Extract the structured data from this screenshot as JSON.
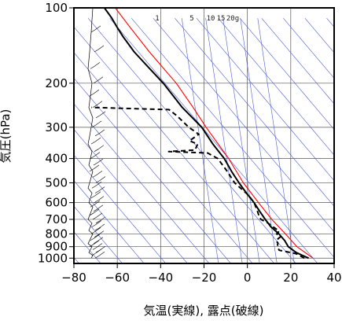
{
  "chart_data": {
    "type": "line",
    "subtype": "skew-t log-p sounding",
    "xlabel": "気温(実線), 露点(破線)",
    "ylabel": "気圧(hPa)",
    "xlim": [
      -80,
      40
    ],
    "ylim": [
      1050,
      100
    ],
    "y_scale": "log",
    "x_ticks": [
      -80,
      -60,
      -40,
      -20,
      0,
      20,
      40
    ],
    "y_ticks": [
      100,
      200,
      300,
      400,
      500,
      600,
      700,
      800,
      900,
      1000
    ],
    "grid": true,
    "mixing_ratio_labels": [
      "1",
      "5",
      "10",
      "15",
      "20g"
    ],
    "mixing_ratio_values": [
      1,
      5,
      10,
      15,
      20
    ],
    "series": [
      {
        "role": "temperature",
        "style": "solid",
        "color": "#000000",
        "points": [
          [
            1000,
            28
          ],
          [
            950,
            22
          ],
          [
            900,
            18
          ],
          [
            850,
            16
          ],
          [
            800,
            13
          ],
          [
            750,
            9
          ],
          [
            700,
            6
          ],
          [
            650,
            3
          ],
          [
            600,
            0
          ],
          [
            550,
            -4
          ],
          [
            500,
            -8
          ],
          [
            450,
            -12
          ],
          [
            400,
            -16
          ],
          [
            350,
            -22
          ],
          [
            300,
            -28
          ],
          [
            250,
            -38
          ],
          [
            200,
            -48
          ],
          [
            175,
            -55
          ],
          [
            150,
            -63
          ],
          [
            130,
            -69
          ],
          [
            120,
            -72
          ],
          [
            110,
            -75
          ],
          [
            100,
            -79
          ]
        ]
      },
      {
        "role": "dewpoint",
        "style": "dashed",
        "color": "#000000",
        "points": [
          [
            1000,
            26
          ],
          [
            960,
            22
          ],
          [
            930,
            14
          ],
          [
            900,
            13
          ],
          [
            870,
            13
          ],
          [
            850,
            12
          ],
          [
            820,
            14
          ],
          [
            800,
            12
          ],
          [
            780,
            13
          ],
          [
            750,
            10
          ],
          [
            720,
            7
          ],
          [
            700,
            4
          ],
          [
            680,
            3
          ],
          [
            650,
            2
          ],
          [
            600,
            0
          ],
          [
            560,
            -3
          ],
          [
            500,
            -10
          ],
          [
            450,
            -14
          ],
          [
            400,
            -19
          ],
          [
            380,
            -24
          ],
          [
            375,
            -42
          ],
          [
            370,
            -30
          ],
          [
            350,
            -29
          ],
          [
            340,
            -33
          ],
          [
            320,
            -29
          ],
          [
            300,
            -34
          ],
          [
            270,
            -40
          ],
          [
            255,
            -44
          ],
          [
            250,
            -80
          ]
        ]
      },
      {
        "role": "parcel",
        "style": "solid",
        "color": "#ff0000",
        "points": [
          [
            1000,
            30
          ],
          [
            900,
            22
          ],
          [
            800,
            16
          ],
          [
            700,
            9
          ],
          [
            600,
            2
          ],
          [
            500,
            -6
          ],
          [
            400,
            -14
          ],
          [
            300,
            -26
          ],
          [
            250,
            -33
          ],
          [
            200,
            -42
          ],
          [
            150,
            -56
          ],
          [
            120,
            -66
          ],
          [
            100,
            -74
          ]
        ]
      }
    ],
    "wind_profile": {
      "location": "left",
      "color": "#000000"
    }
  }
}
